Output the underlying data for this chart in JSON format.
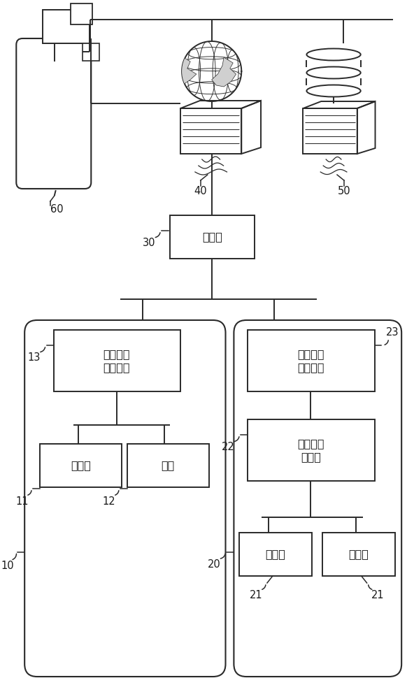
{
  "bg": "#ffffff",
  "lc": "#2a2a2a",
  "lw": 1.4,
  "lw_thin": 0.75,
  "fs": 11.5,
  "fsr": 10.5,
  "labels": {
    "30": "协调器",
    "13": "第一无线\n节点装置",
    "11": "传感器",
    "12": "电表",
    "23": "第二无线\n节点装置",
    "22": "程序逻辑\n控制器",
    "21": "变频器"
  }
}
